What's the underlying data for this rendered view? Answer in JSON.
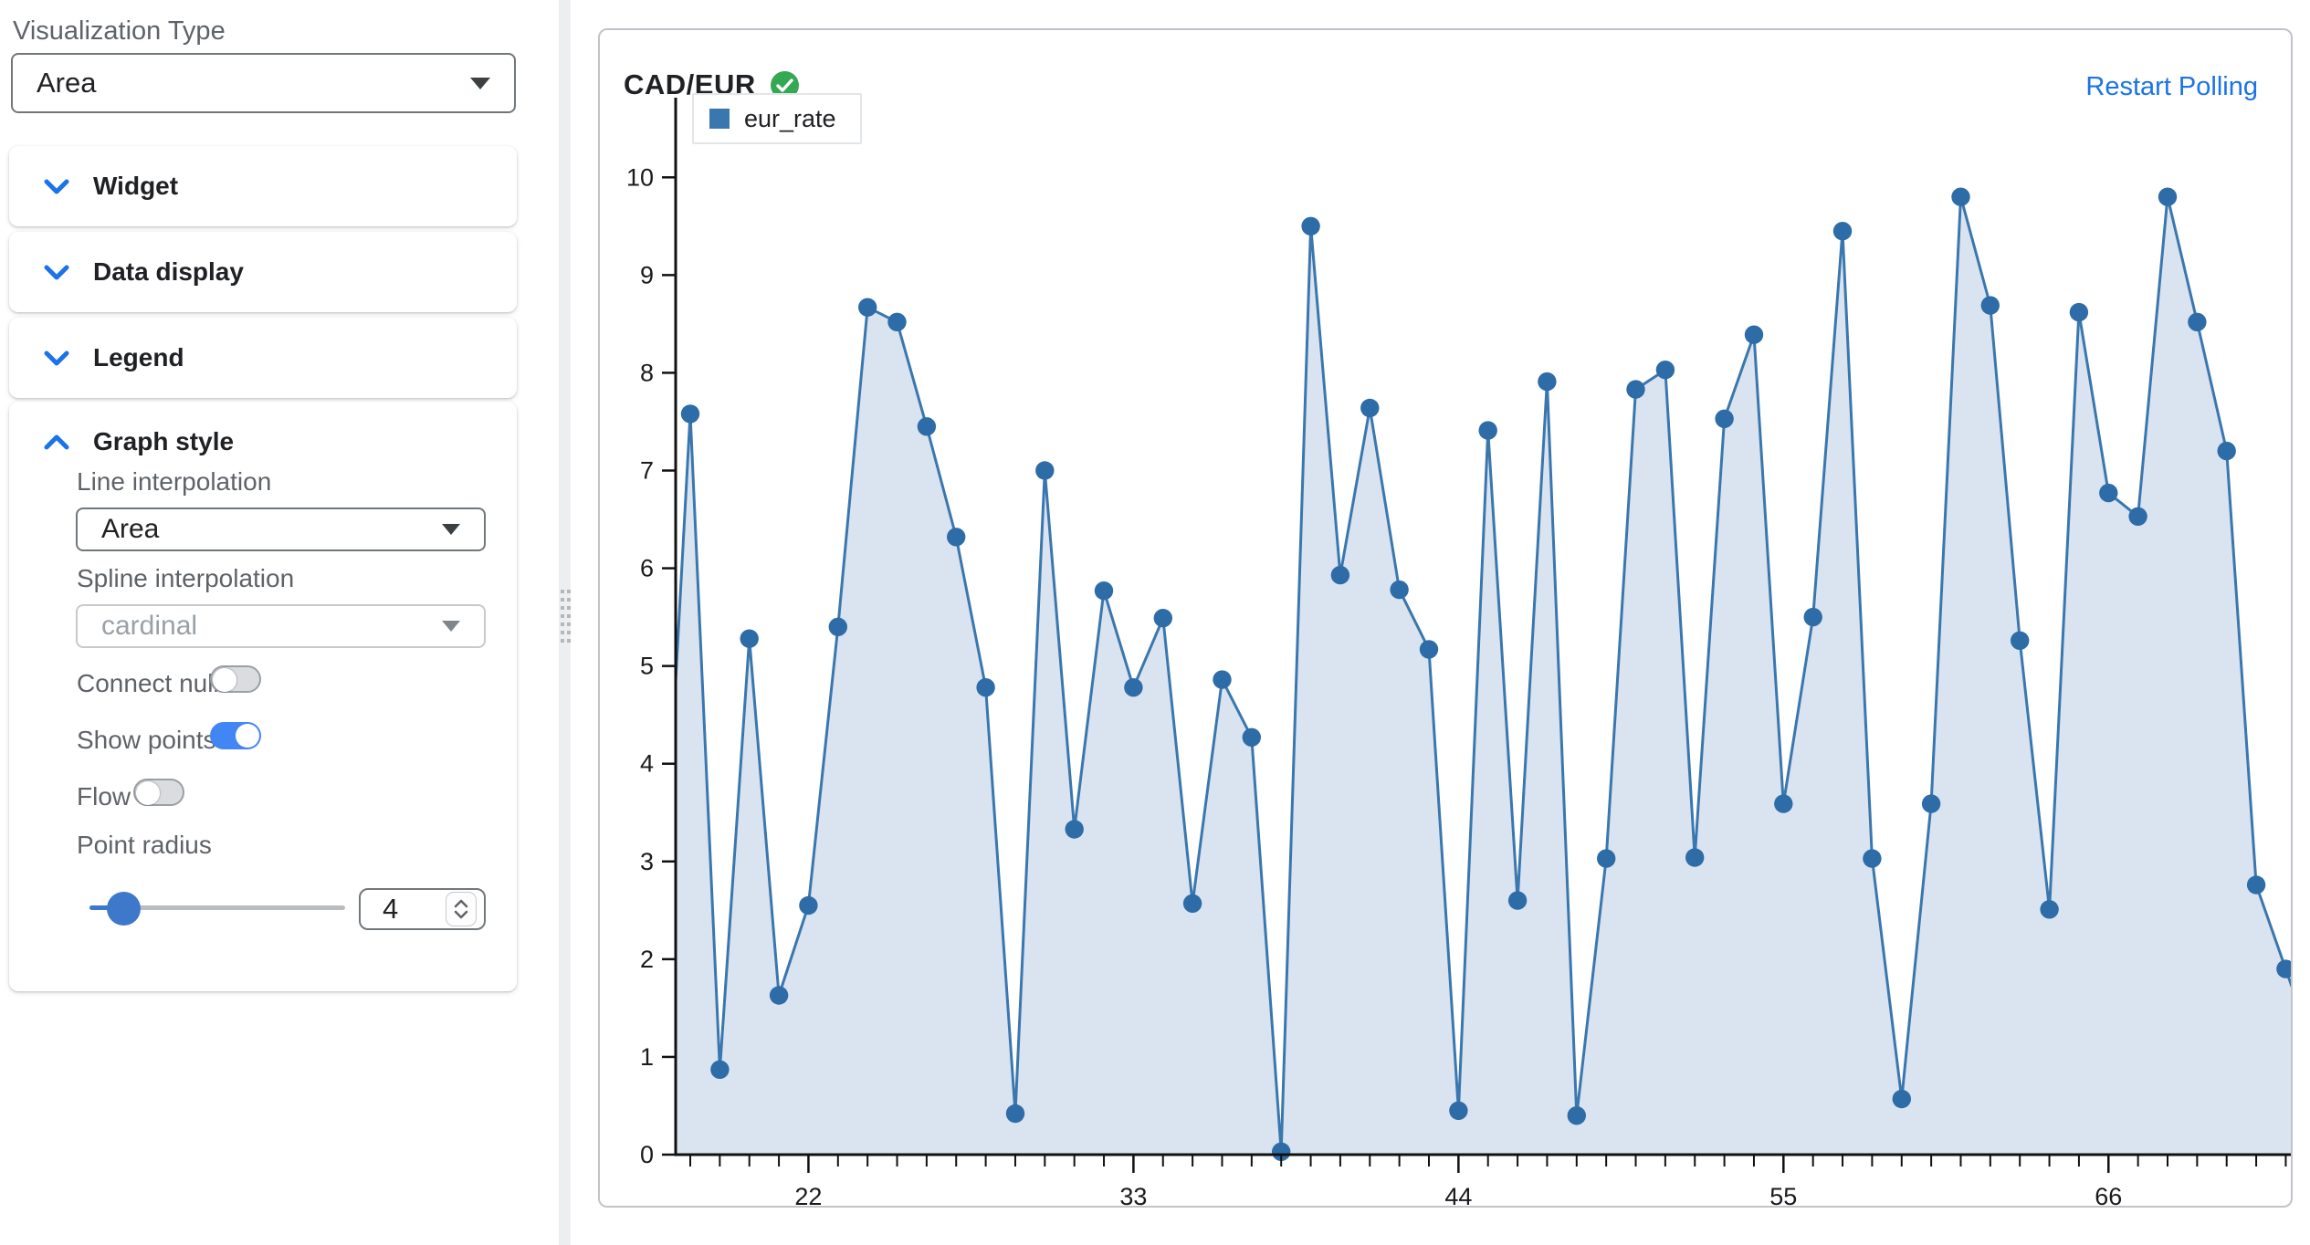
{
  "sidebar": {
    "visualization_type_label": "Visualization Type",
    "visualization_type_value": "Area",
    "sections": [
      {
        "label": "Widget",
        "expanded": false
      },
      {
        "label": "Data display",
        "expanded": false
      },
      {
        "label": "Legend",
        "expanded": false
      },
      {
        "label": "Graph style",
        "expanded": true
      }
    ],
    "graph_style": {
      "line_interpolation_label": "Line interpolation",
      "line_interpolation_value": "Area",
      "spline_interpolation_label": "Spline interpolation",
      "spline_interpolation_placeholder": "cardinal",
      "connect_null_label": "Connect null",
      "connect_null_on": false,
      "show_points_label": "Show points",
      "show_points_on": true,
      "flow_label": "Flow",
      "flow_on": false,
      "point_radius_label": "Point radius",
      "point_radius_value": "4"
    }
  },
  "panel": {
    "title": "CAD/EUR",
    "status_icon": "check-circle-icon",
    "restart_link": "Restart Polling",
    "legend_series": "eur_rate"
  },
  "colors": {
    "accent_blue": "#1a73e8",
    "toggle_on": "#4285f4",
    "chart_line": "#3a77ae",
    "chart_fill": "#dae3f0",
    "chart_dot": "#2e6ca8",
    "status_green": "#34a853",
    "axis": "#111111"
  },
  "chart_data": {
    "type": "area",
    "title": "CAD/EUR",
    "legend_position": "top-left",
    "grid": false,
    "xlabel": "",
    "ylabel": "",
    "ylim": [
      0,
      10
    ],
    "xlim": [
      17.5,
      72.3
    ],
    "y_ticks": [
      0,
      1,
      2,
      3,
      4,
      5,
      6,
      7,
      8,
      9,
      10
    ],
    "x_tick_labels": [
      "22",
      "33",
      "44",
      "55",
      "66"
    ],
    "x_tick_values": [
      22,
      33,
      44,
      55,
      66
    ],
    "edge_start": {
      "x": 17.5,
      "value": 4.85
    },
    "edge_end": {
      "x": 72.3,
      "value": 1.72
    },
    "series": [
      {
        "name": "eur_rate",
        "x": [
          18,
          19,
          20,
          21,
          22,
          23,
          24,
          25,
          26,
          27,
          28,
          29,
          30,
          31,
          32,
          33,
          34,
          35,
          36,
          37,
          38,
          39,
          40,
          41,
          42,
          43,
          44,
          45,
          46,
          47,
          48,
          49,
          50,
          51,
          52,
          53,
          54,
          55,
          56,
          57,
          58,
          59,
          60,
          61,
          62,
          63,
          64,
          65,
          66,
          67,
          68,
          69,
          70,
          71,
          72
        ],
        "values": [
          7.58,
          0.87,
          5.28,
          1.63,
          2.55,
          5.4,
          8.67,
          8.52,
          7.45,
          6.32,
          4.78,
          0.42,
          7.0,
          3.33,
          5.77,
          4.78,
          5.49,
          2.57,
          4.86,
          4.27,
          0.03,
          9.5,
          5.93,
          7.64,
          5.78,
          5.17,
          0.45,
          7.41,
          2.6,
          7.91,
          0.4,
          3.03,
          7.83,
          8.03,
          3.04,
          7.53,
          8.39,
          3.59,
          5.5,
          9.45,
          3.03,
          0.57,
          3.59,
          9.8,
          8.69,
          5.26,
          2.51,
          8.62,
          6.77,
          6.53,
          9.8,
          8.52,
          7.2,
          2.76,
          1.9
        ]
      }
    ]
  }
}
